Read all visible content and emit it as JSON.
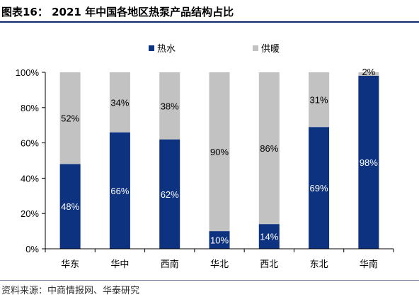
{
  "figure": {
    "title": "图表16：  2021 年中国各地区热泵产品结构占比",
    "source": "资料来源：中商情报网、华泰研究"
  },
  "colors": {
    "series1": "#0d3280",
    "series2": "#c2c2c2"
  },
  "chart_data": {
    "type": "bar",
    "stacked": true,
    "categories": [
      "华东",
      "华中",
      "西南",
      "华北",
      "西北",
      "东北",
      "华南"
    ],
    "series": [
      {
        "name": "热水",
        "values": [
          48,
          66,
          62,
          10,
          14,
          69,
          98
        ],
        "labels": [
          "48%",
          "66%",
          "62%",
          "10%",
          "14%",
          "69%",
          "98%"
        ]
      },
      {
        "name": "供暖",
        "values": [
          52,
          34,
          38,
          90,
          86,
          31,
          2
        ],
        "labels": [
          "52%",
          "34%",
          "38%",
          "90%",
          "86%",
          "31%",
          "2%"
        ]
      }
    ],
    "yticks": [
      "0%",
      "20%",
      "40%",
      "60%",
      "80%",
      "100%"
    ],
    "ylim": [
      0,
      100
    ],
    "legend_position": "top",
    "grid": false
  }
}
